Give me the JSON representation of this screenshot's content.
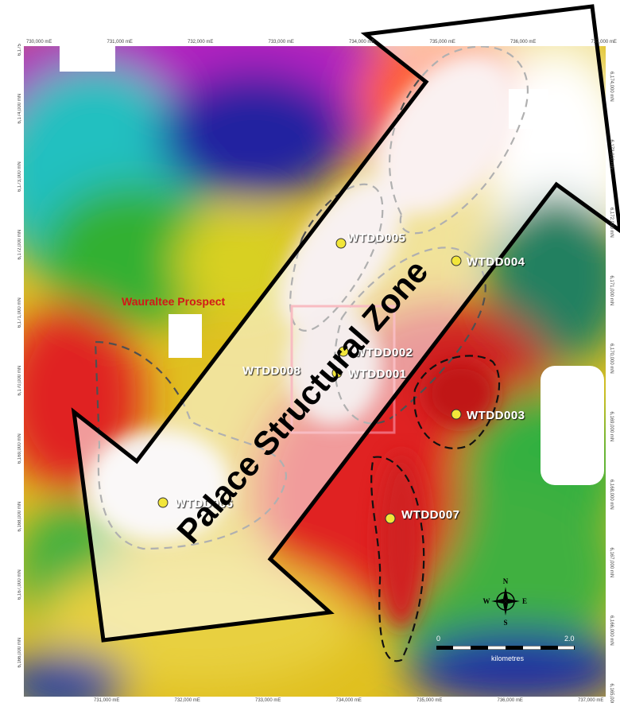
{
  "map": {
    "x_ticks": [
      "730,000 mE",
      "731,000 mE",
      "732,000 mE",
      "733,000 mE",
      "734,000 mE",
      "735,000 mE",
      "736,000 mE",
      "737,000 mE",
      "738,000 mE"
    ],
    "x_ticks_bottom": [
      "731,000 mE",
      "732,000 mE",
      "733,000 mE",
      "734,000 mE",
      "735,000 mE",
      "736,000 mE",
      "737,000 mE"
    ],
    "y_ticks_left": [
      "6,175",
      "6,174,000 mN",
      "6,173,000 mN",
      "6,172,000 mN",
      "6,171,000 mN",
      "6,170,000 mN",
      "6,169,000 mN",
      "6,168,000 mN",
      "6,167,000 mN",
      "6,166,000 mN",
      "mN"
    ],
    "y_ticks_right": [
      "6,174,000 mN",
      "6,173,000 mN",
      "6,172,000 mN",
      "6,171,000 mN",
      "6,170,000 mN",
      "6,169,000 mN",
      "6,168,000 mN",
      "6,167,000 mN",
      "6,166,000 mN",
      "6,165,000"
    ],
    "prospect_label": "Wauraltee Prospect",
    "zone_label": "Palace Structural Zone",
    "drillholes": [
      {
        "id": "WTDD004",
        "label": "WTDD004"
      },
      {
        "id": "WTDD002",
        "label": "WTDD002"
      },
      {
        "id": "WTDD001",
        "label": "WTDD001"
      },
      {
        "id": "WTDD003",
        "label": "WTDD003"
      },
      {
        "id": "WTDD006",
        "label": "WTDD006"
      },
      {
        "id": "WTDD007",
        "label": "WTDD007"
      },
      {
        "id": "WTDD005",
        "label": "WTDD005"
      },
      {
        "id": "WTDD008",
        "label": "WTDD008"
      }
    ],
    "scale_bar": {
      "start": "0",
      "end": "2.0",
      "unit": "kilometres"
    },
    "compass": {
      "n": "N",
      "s": "S",
      "e": "E",
      "w": "W"
    },
    "colors": {
      "marker_fill": "#f2e63a",
      "drillhole_label": "#ffffff",
      "prospect_label": "#d21818",
      "target_box": "#ef6a78",
      "zone_arrow_fill": "#ffffff",
      "zone_arrow_stroke": "#000000"
    }
  }
}
